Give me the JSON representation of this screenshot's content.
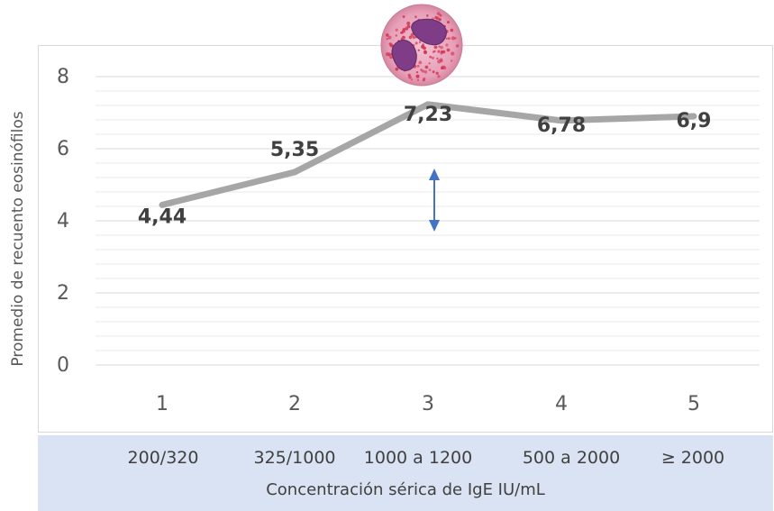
{
  "chart_data": {
    "type": "line",
    "x": [
      1,
      2,
      3,
      4,
      5
    ],
    "values": [
      4.44,
      5.35,
      7.23,
      6.78,
      6.9
    ],
    "data_labels": [
      "4,44",
      "5,35",
      "7,23",
      "6,78",
      "6,9"
    ],
    "ylabel": "Promedio de recuento eosinófilos",
    "xlabel": "Concentración sérica de IgE IU/mL",
    "x_tick_labels": [
      "1",
      "2",
      "3",
      "4",
      "5"
    ],
    "y_ticks": [
      0,
      2,
      4,
      6,
      8
    ],
    "y_tick_labels": [
      "0",
      "2",
      "4",
      "6",
      "8"
    ],
    "ylim": [
      0,
      8
    ],
    "grid": true,
    "category_labels": [
      "200/320",
      "325/1000",
      "1000 a 1200",
      "500 a 2000",
      "≥ 2000"
    ],
    "colors": {
      "line": "#a6a6a6",
      "gridline": "#e3e3e3",
      "arrow": "#4472c4",
      "band": "#dae3f3",
      "text": "#595959"
    }
  }
}
